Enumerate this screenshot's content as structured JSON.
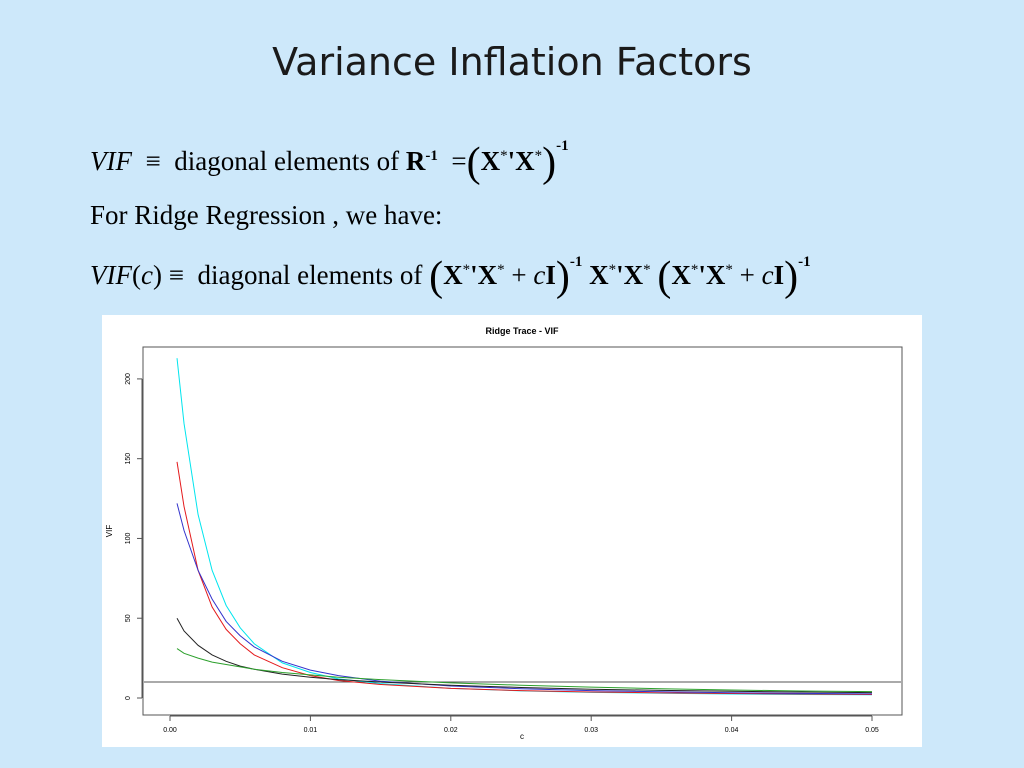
{
  "slide": {
    "title": "Variance Inflation Factors"
  },
  "formulas": {
    "line1": {
      "lhs": "VIF",
      "equiv": "≡",
      "text": "diagonal elements of",
      "matrix_R": "R",
      "inv": "-1",
      "eq": "=",
      "xtx": "X",
      "star": "*",
      "prime": "'",
      "outer_inv": "-1"
    },
    "line2": {
      "text": "For Ridge Regression , we have:"
    },
    "line3": {
      "lhs": "VIF",
      "arg_open": "(",
      "c": "c",
      "arg_close": ")",
      "equiv": "≡",
      "text": "diagonal elements of",
      "X": "X",
      "star": "*",
      "prime": "'",
      "plus": "+",
      "I": "I",
      "inv": "-1"
    }
  },
  "chart_data": {
    "type": "line",
    "title": "Ridge Trace - VIF",
    "xlabel": "c",
    "ylabel": "VIF",
    "xlim": [
      0,
      0.05
    ],
    "ylim": [
      0,
      220
    ],
    "x_ticks": [
      "0.00",
      "0.01",
      "0.02",
      "0.03",
      "0.04",
      "0.05"
    ],
    "x_tick_values": [
      0,
      0.01,
      0.02,
      0.03,
      0.04,
      0.05
    ],
    "y_ticks": [
      "0",
      "50",
      "100",
      "150",
      "200"
    ],
    "y_tick_values": [
      0,
      50,
      100,
      150,
      200
    ],
    "x": [
      0.0005,
      0.001,
      0.002,
      0.003,
      0.004,
      0.005,
      0.006,
      0.008,
      0.01,
      0.012,
      0.015,
      0.02,
      0.025,
      0.03,
      0.035,
      0.04,
      0.045,
      0.05
    ],
    "series": [
      {
        "color": "#00e5ee",
        "values": [
          213,
          172,
          115,
          80,
          58,
          44,
          34,
          22,
          16,
          12,
          9,
          6,
          4.5,
          3.5,
          3,
          2.5,
          2.2,
          2
        ]
      },
      {
        "color": "#e41a1c",
        "values": [
          148,
          120,
          80,
          57,
          43,
          34,
          27,
          19,
          14,
          11,
          8.5,
          6,
          4.6,
          3.8,
          3.2,
          2.8,
          2.5,
          2.2
        ]
      },
      {
        "color": "#3333cc",
        "values": [
          122,
          105,
          80,
          62,
          48,
          39,
          32,
          23,
          17.5,
          14,
          10.5,
          7.5,
          5.8,
          4.6,
          3.9,
          3.3,
          2.9,
          2.6
        ]
      },
      {
        "color": "#222222",
        "values": [
          50,
          42,
          33,
          27,
          23,
          20,
          18,
          15,
          13,
          11.5,
          10,
          8,
          6.6,
          5.5,
          4.8,
          4.2,
          3.8,
          3.4
        ]
      },
      {
        "color": "#2ca02c",
        "values": [
          31,
          28,
          25,
          22.5,
          21,
          19.5,
          18,
          16,
          14.5,
          13,
          11.5,
          9.5,
          8,
          6.8,
          5.8,
          5,
          4.4,
          4
        ]
      }
    ],
    "reference_line": {
      "y": 10,
      "color": "#555555"
    },
    "grid": false,
    "legend": "none"
  }
}
